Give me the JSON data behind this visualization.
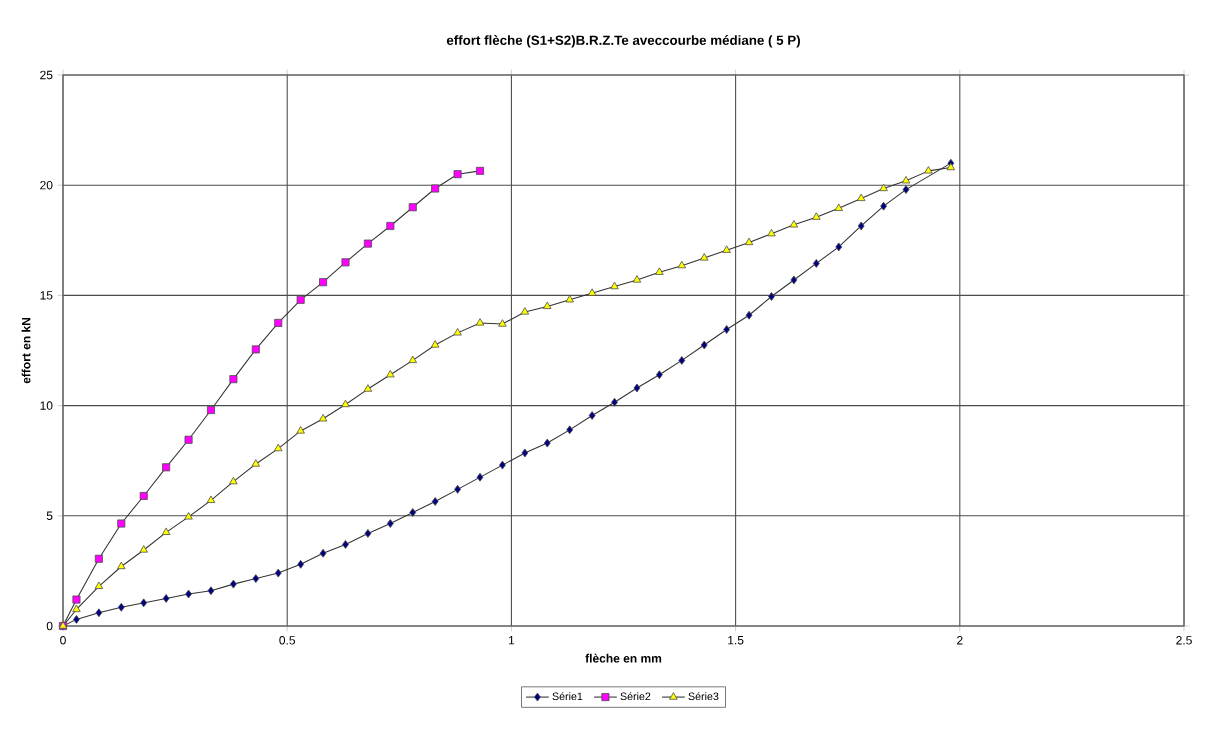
{
  "chart_data": {
    "type": "line",
    "title": "effort flèche (S1+S2)B.R.Z.Te aveccourbe médiane ( 5 P)",
    "xlabel": "flèche en mm",
    "ylabel": "effort en kN",
    "xlim": [
      0,
      2.5
    ],
    "xticks": [
      0,
      0.5,
      1,
      1.5,
      2,
      2.5
    ],
    "ylim": [
      0,
      25
    ],
    "yticks": [
      0,
      5,
      10,
      15,
      20,
      25
    ],
    "grid": true,
    "legend": "bottom",
    "series": [
      {
        "name": "Série1",
        "color": "#000080",
        "marker": "diamond",
        "x": [
          0,
          0.03,
          0.08,
          0.13,
          0.18,
          0.23,
          0.28,
          0.33,
          0.38,
          0.43,
          0.48,
          0.53,
          0.58,
          0.63,
          0.68,
          0.73,
          0.78,
          0.83,
          0.88,
          0.93,
          0.98,
          1.03,
          1.08,
          1.13,
          1.18,
          1.23,
          1.28,
          1.33,
          1.38,
          1.43,
          1.48,
          1.53,
          1.58,
          1.63,
          1.68,
          1.73,
          1.78,
          1.83,
          1.88,
          1.93,
          1.98
        ],
        "values": [
          0,
          0.3,
          0.6,
          0.85,
          1.05,
          1.25,
          1.45,
          1.6,
          1.9,
          2.15,
          2.4,
          2.8,
          3.3,
          3.7,
          4.2,
          4.65,
          5.15,
          5.65,
          6.2,
          6.75,
          7.3,
          7.85,
          8.3,
          8.9,
          9.55,
          10.15,
          10.8,
          11.4,
          12.05,
          12.75,
          13.45,
          14.1,
          14.95,
          15.7,
          16.45,
          17.2,
          18.15,
          19.05,
          19.8,
          null,
          21.0
        ]
      },
      {
        "name": "Série2",
        "color": "#ff00ff",
        "marker": "square",
        "x": [
          0,
          0.03,
          0.08,
          0.13,
          0.18,
          0.23,
          0.28,
          0.33,
          0.38,
          0.43,
          0.48,
          0.53,
          0.58,
          0.63,
          0.68,
          0.73,
          0.78,
          0.83,
          0.88,
          0.93
        ],
        "values": [
          0,
          1.2,
          3.05,
          4.65,
          5.9,
          7.2,
          8.45,
          9.8,
          11.2,
          12.55,
          13.75,
          14.8,
          15.6,
          16.5,
          17.35,
          18.15,
          19.0,
          19.85,
          20.5,
          20.65
        ]
      },
      {
        "name": "Série3",
        "color": "#ffff00",
        "marker": "triangle",
        "x": [
          0,
          0.03,
          0.08,
          0.13,
          0.18,
          0.23,
          0.28,
          0.33,
          0.38,
          0.43,
          0.48,
          0.53,
          0.58,
          0.63,
          0.68,
          0.73,
          0.78,
          0.83,
          0.88,
          0.93,
          0.98,
          1.03,
          1.08,
          1.13,
          1.18,
          1.23,
          1.28,
          1.33,
          1.38,
          1.43,
          1.48,
          1.53,
          1.58,
          1.63,
          1.68,
          1.73,
          1.78,
          1.83,
          1.88,
          1.93,
          1.98
        ],
        "values": [
          0,
          0.75,
          1.8,
          2.7,
          3.45,
          4.25,
          4.95,
          5.7,
          6.55,
          7.35,
          8.05,
          8.85,
          9.4,
          10.05,
          10.75,
          11.4,
          12.05,
          12.75,
          13.3,
          13.75,
          13.7,
          14.25,
          14.5,
          14.8,
          15.1,
          15.4,
          15.7,
          16.05,
          16.35,
          16.7,
          17.05,
          17.4,
          17.8,
          18.2,
          18.55,
          18.95,
          19.4,
          19.85,
          20.2,
          20.65,
          20.8
        ]
      }
    ]
  }
}
